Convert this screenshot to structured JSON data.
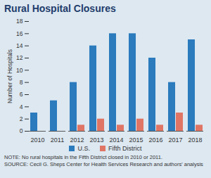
{
  "chart_data": {
    "type": "bar",
    "title": "Rural Hospital Closures",
    "ylabel": "Number of Hospitals",
    "categories": [
      "2010",
      "2011",
      "2012",
      "2013",
      "2014",
      "2015",
      "2016",
      "2017",
      "2018"
    ],
    "series": [
      {
        "name": "U.S.",
        "color": "#2b7bbd",
        "values": [
          3,
          5,
          8,
          14,
          16,
          16,
          12,
          8,
          15
        ]
      },
      {
        "name": "Fifth District",
        "color": "#e07565",
        "values": [
          0,
          0,
          1,
          2,
          1,
          2,
          1,
          3,
          1
        ]
      }
    ],
    "ylim": [
      0,
      18
    ],
    "yticks": [
      0,
      2,
      4,
      6,
      8,
      10,
      12,
      14,
      16,
      18
    ],
    "grid": false,
    "legend": "bottom",
    "note": "NOTE: No rural hospitals in the Fifth District closed in 2010 or 2011.",
    "source": "SOURCE: Cecil G. Sheps Center for Health Services Research and authors' analysis"
  }
}
